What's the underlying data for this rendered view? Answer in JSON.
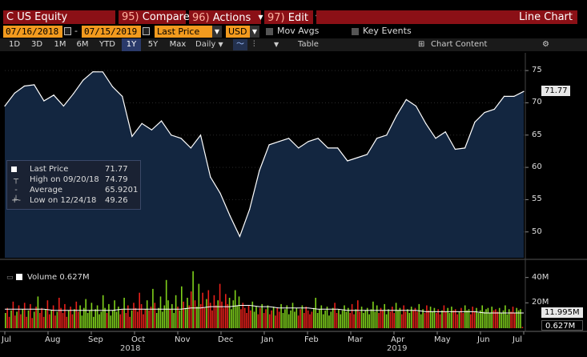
{
  "header": {
    "ticker": "C US Equity",
    "menus": [
      {
        "num": "95)",
        "label": "Compare"
      },
      {
        "num": "96)",
        "label": "Actions"
      },
      {
        "num": "97)",
        "label": "Edit"
      }
    ],
    "view_title": "Line Chart"
  },
  "controls": {
    "start_date": "07/16/2018",
    "end_date": "07/15/2019",
    "field": "Last Price",
    "currency": "USD",
    "mov_avgs_label": "Mov Avgs",
    "key_events_label": "Key Events"
  },
  "toolbar": {
    "timeframes": [
      "1D",
      "3D",
      "1M",
      "6M",
      "YTD",
      "1Y",
      "5Y",
      "Max"
    ],
    "active_timeframe": "1Y",
    "frequency": "Daily",
    "table_label": "Table",
    "chart_content_label": "Chart Content"
  },
  "legend": {
    "last_price_label": "Last Price",
    "last_price_value": "71.77",
    "high_label": "High on 09/20/18",
    "high_value": "74.79",
    "average_label": "Average",
    "average_value": "65.9201",
    "low_label": "Low on 12/24/18",
    "low_value": "49.26"
  },
  "volume_legend": {
    "label": "Volume",
    "value": "0.627M"
  },
  "colors": {
    "title_bar": "#8b1016",
    "date_box": "#f29a1e",
    "price_line": "#ffffff",
    "area_fill": "#132640",
    "volume_up": "#7fd11b",
    "volume_down": "#e8201a",
    "volume_avg_line": "#ffffff"
  },
  "chart_data": {
    "type": "line",
    "price": {
      "name": "Last Price",
      "ylim": [
        46,
        77
      ],
      "yticks": [
        50,
        55,
        60,
        65,
        70,
        75
      ],
      "last_value_label": "71.77",
      "x": [
        "2018-07-16",
        "2018-07-23",
        "2018-07-30",
        "2018-08-06",
        "2018-08-13",
        "2018-08-20",
        "2018-08-27",
        "2018-09-03",
        "2018-09-10",
        "2018-09-17",
        "2018-09-20",
        "2018-09-24",
        "2018-10-01",
        "2018-10-08",
        "2018-10-15",
        "2018-10-22",
        "2018-10-29",
        "2018-11-05",
        "2018-11-12",
        "2018-11-19",
        "2018-11-26",
        "2018-12-03",
        "2018-12-10",
        "2018-12-17",
        "2018-12-24",
        "2018-12-31",
        "2019-01-07",
        "2019-01-14",
        "2019-01-21",
        "2019-01-28",
        "2019-02-04",
        "2019-02-11",
        "2019-02-18",
        "2019-02-25",
        "2019-03-04",
        "2019-03-11",
        "2019-03-18",
        "2019-03-25",
        "2019-04-01",
        "2019-04-08",
        "2019-04-15",
        "2019-04-22",
        "2019-04-29",
        "2019-05-06",
        "2019-05-13",
        "2019-05-20",
        "2019-05-27",
        "2019-06-03",
        "2019-06-10",
        "2019-06-17",
        "2019-06-24",
        "2019-07-01",
        "2019-07-08",
        "2019-07-15"
      ],
      "values": [
        69.5,
        71.5,
        72.6,
        72.8,
        70.3,
        71.2,
        69.5,
        71.4,
        73.5,
        74.8,
        74.79,
        72.5,
        71.0,
        64.8,
        66.8,
        65.8,
        67.2,
        65.0,
        64.5,
        63.0,
        65.0,
        58.5,
        56.0,
        52.5,
        49.3,
        53.5,
        59.5,
        63.5,
        64.0,
        64.5,
        63.0,
        64.0,
        64.5,
        63.0,
        63.0,
        61.0,
        61.5,
        62.0,
        64.5,
        65.0,
        68.0,
        70.5,
        69.5,
        66.8,
        64.5,
        65.5,
        62.8,
        63.0,
        67.0,
        68.5,
        69.0,
        71.0,
        71.0,
        71.77
      ]
    },
    "volume": {
      "name": "Volume",
      "yticks_labels": [
        "40M",
        "20M"
      ],
      "ytick_values": [
        40,
        20
      ],
      "ylim": [
        0,
        48
      ],
      "average_label": "11.995M",
      "last_label": "0.627M",
      "values_m": [
        12,
        16,
        9,
        14,
        21,
        10,
        13,
        18,
        11,
        15,
        20,
        9,
        14,
        19,
        8,
        13,
        17,
        25,
        12,
        16,
        9,
        15,
        22,
        11,
        14,
        18,
        10,
        13,
        24,
        16,
        12,
        19,
        9,
        14,
        17,
        11,
        15,
        21,
        13,
        18,
        10,
        16,
        23,
        12,
        14,
        20,
        9,
        15,
        18,
        11,
        13,
        26,
        16,
        12,
        19,
        10,
        14,
        22,
        13,
        17,
        11,
        15,
        24,
        12,
        18,
        9,
        14,
        20,
        16,
        13,
        28,
        19,
        11,
        15,
        22,
        14,
        17,
        31,
        20,
        12,
        16,
        25,
        13,
        18,
        38,
        22,
        15,
        19,
        12,
        26,
        17,
        14,
        33,
        21,
        16,
        24,
        18,
        29,
        45,
        22,
        17,
        35,
        19,
        28,
        16,
        23,
        30,
        20,
        14,
        26,
        18,
        22,
        35,
        21,
        16,
        27,
        19,
        24,
        15,
        22,
        30,
        18,
        25,
        15,
        20,
        16,
        12,
        18,
        14,
        21,
        13,
        17,
        11,
        16,
        19,
        12,
        15,
        18,
        11,
        14,
        17,
        10,
        16,
        13,
        19,
        12,
        15,
        18,
        11,
        14,
        20,
        13,
        16,
        10,
        15,
        18,
        12,
        17,
        14,
        11,
        13,
        16,
        24,
        12,
        15,
        18,
        11,
        14,
        17,
        10,
        13,
        16,
        20,
        12,
        15,
        11,
        14,
        18,
        13,
        16,
        12,
        19,
        11,
        15,
        22,
        13,
        17,
        12,
        14,
        16,
        11,
        15,
        21,
        13,
        18,
        12,
        16,
        14,
        19,
        11,
        15,
        13,
        17,
        12,
        20,
        14,
        16,
        11,
        18,
        13,
        15,
        12,
        17,
        14,
        16,
        13,
        19,
        11,
        15,
        12,
        18,
        14,
        17,
        13,
        16,
        12,
        15,
        11,
        14,
        18,
        13,
        16,
        12,
        17,
        14,
        15,
        11,
        13,
        16,
        12,
        18,
        14,
        15,
        11,
        17,
        13,
        16,
        12,
        14,
        18,
        13,
        15,
        16,
        12,
        17,
        14,
        15,
        13,
        16,
        12,
        14,
        18,
        11,
        15,
        13,
        17,
        12,
        16,
        14,
        15,
        1
      ],
      "avg_line_m": [
        15,
        15,
        15,
        15,
        15,
        14,
        14,
        14,
        14,
        14,
        14,
        14,
        15,
        15,
        15,
        15,
        15,
        15,
        15,
        16,
        16,
        17,
        17,
        17,
        18,
        18,
        17,
        17,
        16,
        16,
        16,
        16,
        15,
        15,
        15,
        14,
        14,
        14,
        14,
        14,
        14,
        14,
        14,
        13,
        13,
        13,
        13,
        13,
        13,
        12,
        12,
        12,
        12,
        12
      ]
    },
    "x_ticks": [
      "Jul",
      "Aug",
      "Sep",
      "Oct",
      "Nov",
      "Dec",
      "Jan",
      "Feb",
      "Mar",
      "Apr",
      "May",
      "Jun",
      "Jul"
    ],
    "years": [
      "2018",
      "2019"
    ]
  }
}
